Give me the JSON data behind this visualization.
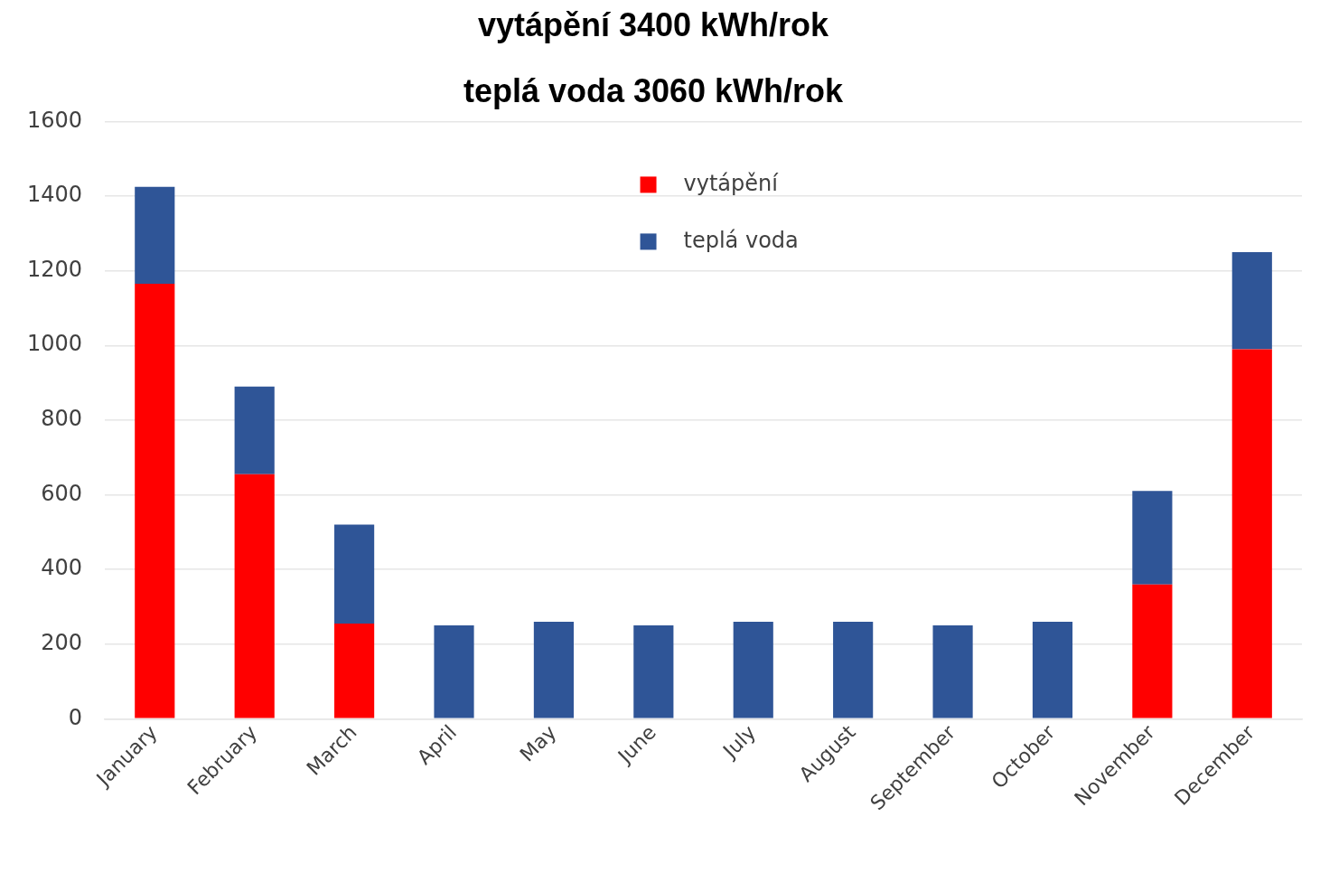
{
  "chart_data": {
    "type": "bar",
    "title": "vytápění 3400 kWh/rok",
    "subtitle": "teplá voda 3060 kWh/rok",
    "categories": [
      "January",
      "February",
      "March",
      "April",
      "May",
      "June",
      "July",
      "August",
      "September",
      "October",
      "November",
      "December"
    ],
    "stacked": true,
    "series": [
      {
        "name": "vytápění",
        "color": "#ff0000",
        "values": [
          1165,
          655,
          255,
          0,
          0,
          0,
          0,
          0,
          0,
          0,
          360,
          990
        ]
      },
      {
        "name": "teplá voda",
        "color": "#2f5597",
        "values": [
          260,
          235,
          265,
          250,
          260,
          250,
          260,
          260,
          250,
          260,
          250,
          260
        ]
      }
    ],
    "ylim": [
      0,
      1600
    ],
    "yticks": [
      0,
      200,
      400,
      600,
      800,
      1000,
      1200,
      1400,
      1600
    ],
    "grid": "y",
    "legend": "top"
  }
}
